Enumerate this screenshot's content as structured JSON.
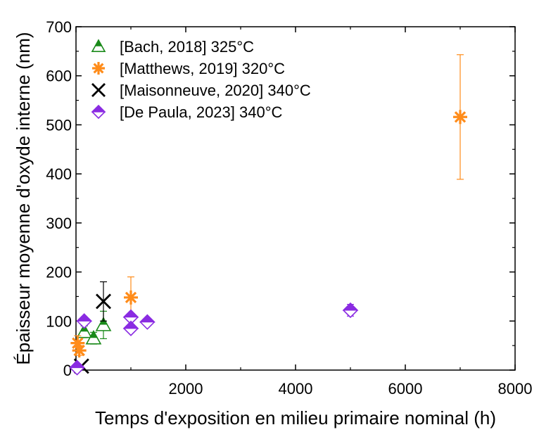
{
  "chart_data": {
    "type": "scatter",
    "xlabel": "Temps d'exposition en milieu primaire nominal (h)",
    "ylabel": "Épaisseur moyenne d'oxyde interne (nm)",
    "xlim": [
      0,
      8000
    ],
    "ylim": [
      0,
      700
    ],
    "xticks": [
      2000,
      4000,
      6000,
      8000
    ],
    "yticks": [
      0,
      100,
      200,
      300,
      400,
      500,
      600,
      700
    ],
    "grid": false,
    "legend_position": "top-left",
    "series": [
      {
        "name": "[Bach, 2018]   325°C",
        "marker": "triangle",
        "color": "#1a8a1a",
        "points": [
          {
            "x": 150,
            "y": 78,
            "err": 12
          },
          {
            "x": 320,
            "y": 65,
            "err": 12
          },
          {
            "x": 500,
            "y": 92,
            "err": 28
          }
        ]
      },
      {
        "name": "[Matthews, 2019]  320°C",
        "marker": "asterisk",
        "color": "#ff8c1a",
        "points": [
          {
            "x": 30,
            "y": 55,
            "err": 15
          },
          {
            "x": 60,
            "y": 40,
            "err": 10
          },
          {
            "x": 1000,
            "y": 148,
            "err": 42
          },
          {
            "x": 7000,
            "y": 516,
            "err": 127
          }
        ]
      },
      {
        "name": "[Maisonneuve, 2020]   340°C",
        "marker": "x",
        "color": "#000000",
        "points": [
          {
            "x": 100,
            "y": 8,
            "err": 0
          },
          {
            "x": 500,
            "y": 140,
            "err": 40
          }
        ]
      },
      {
        "name": "[De Paula, 2023]   340°C",
        "marker": "diamond-half",
        "color": "#8a2be2",
        "points": [
          {
            "x": 20,
            "y": 5,
            "err": 0
          },
          {
            "x": 150,
            "y": 100,
            "err": 0
          },
          {
            "x": 1000,
            "y": 108,
            "err": 8
          },
          {
            "x": 1000,
            "y": 85,
            "err": 0
          },
          {
            "x": 1300,
            "y": 98,
            "err": 0
          },
          {
            "x": 5000,
            "y": 122,
            "err": 12
          }
        ]
      }
    ]
  }
}
